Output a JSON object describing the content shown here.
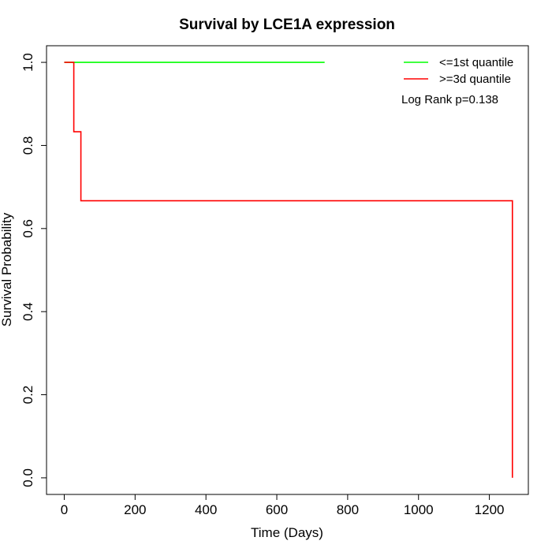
{
  "chart_data": {
    "type": "line",
    "title": "Survival by LCE1A expression",
    "xlabel": "Time (Days)",
    "ylabel": "Survival Probability",
    "xlim": [
      -50,
      1310
    ],
    "ylim": [
      -0.04,
      1.04
    ],
    "x_ticks": [
      0,
      200,
      400,
      600,
      800,
      1000,
      1200
    ],
    "y_ticks": [
      0.0,
      0.2,
      0.4,
      0.6,
      0.8,
      1.0
    ],
    "x_tick_labels": [
      "0",
      "200",
      "400",
      "600",
      "800",
      "1000",
      "1200"
    ],
    "y_tick_labels": [
      "0.0",
      "0.2",
      "0.4",
      "0.6",
      "0.8",
      "1.0"
    ],
    "grid": false,
    "legend_position": "top-right",
    "series": [
      {
        "name": "<=1st quantile",
        "color": "#00ff00",
        "step": true,
        "points": [
          [
            0,
            1.0
          ],
          [
            735,
            1.0
          ]
        ]
      },
      {
        "name": ">=3d quantile",
        "color": "#ff0000",
        "step": true,
        "points": [
          [
            0,
            1.0
          ],
          [
            27,
            0.833
          ],
          [
            47,
            0.667
          ],
          [
            1265,
            0.0
          ]
        ]
      }
    ],
    "annotations": [
      "Log Rank p=0.138"
    ]
  }
}
